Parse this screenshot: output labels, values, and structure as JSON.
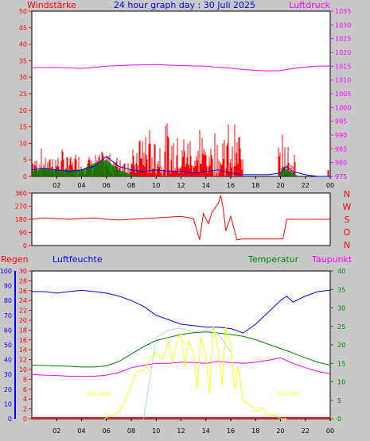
{
  "header": {
    "title": "24 hour graph day : 30 Juli 2025",
    "left_label": "Windstärke",
    "right_label": "Luftdruck"
  },
  "colors": {
    "wind": "#ff0000",
    "gust": "#0000ff",
    "wind_green": "#008000",
    "pressure": "#ff00ff",
    "direction": "#ff0000",
    "rain": "#ff0000",
    "humidity": "#0000ff",
    "temperature": "#008000",
    "dewpoint": "#ff00ff",
    "solar": "#ffff00",
    "uv": "#add8e6"
  },
  "chart_data": [
    {
      "id": "wind-pressure",
      "type": "line",
      "x_ticks": [
        "02",
        "04",
        "06",
        "08",
        "10",
        "12",
        "14",
        "16",
        "18",
        "20",
        "22",
        "00"
      ],
      "y_left_ticks": [
        "0",
        "5",
        "10",
        "15",
        "20",
        "25",
        "30",
        "35",
        "40",
        "45",
        "50"
      ],
      "y_right_ticks": [
        "975",
        "980",
        "985",
        "990",
        "995",
        "1000",
        "1005",
        "1010",
        "1015",
        "1020",
        "1025",
        "1030",
        "1035"
      ],
      "y_left_range": [
        0,
        50
      ],
      "y_right_range": [
        975,
        1035
      ],
      "series": [
        {
          "key": "pressure",
          "hours": [
            0,
            2,
            4,
            5,
            6,
            8,
            10,
            12,
            14,
            15,
            16,
            17,
            18,
            19,
            20,
            21,
            22,
            23,
            24
          ],
          "values": [
            1014.5,
            1014.6,
            1014.2,
            1014.6,
            1015.0,
            1015.4,
            1015.6,
            1015.2,
            1015.0,
            1014.6,
            1014.3,
            1013.8,
            1013.5,
            1013.3,
            1013.4,
            1014.2,
            1014.7,
            1015.0,
            1015.1
          ]
        },
        {
          "key": "wind_green",
          "hours": [
            0,
            1,
            2,
            3,
            4,
            5,
            6,
            7,
            8,
            9,
            19.9,
            20.2,
            20.5,
            21,
            21.5
          ],
          "values": [
            1.5,
            2.5,
            2,
            2,
            2,
            4,
            5,
            2,
            0.5,
            0,
            0,
            3,
            2,
            1,
            0
          ]
        },
        {
          "key": "gust",
          "hours": [
            0,
            1,
            2,
            3,
            4,
            5,
            6,
            7,
            8,
            9,
            10,
            11,
            12,
            13,
            14,
            15,
            16,
            17,
            18,
            19,
            20,
            20.5,
            21,
            22,
            23,
            24
          ],
          "values": [
            2,
            2.5,
            2,
            1.5,
            2,
            3,
            6,
            3,
            2,
            1.5,
            2,
            1.5,
            1.5,
            1,
            1.5,
            2,
            1,
            0.5,
            0.5,
            0.5,
            1,
            3,
            1.5,
            0.5,
            0,
            0
          ]
        }
      ]
    },
    {
      "id": "wind-direction",
      "type": "line",
      "y_ticks": [
        "0",
        "90",
        "180",
        "270",
        "360"
      ],
      "y_range": [
        0,
        360
      ],
      "compass": [
        "N",
        "W",
        "S",
        "O",
        "N"
      ],
      "series": [
        {
          "key": "direction",
          "hours": [
            0,
            1,
            2,
            3,
            4,
            5,
            6,
            7,
            8,
            9,
            10,
            11,
            12,
            13,
            13.5,
            13.8,
            14.2,
            14.5,
            15,
            15.2,
            15.4,
            15.6,
            16,
            16.5,
            17,
            18,
            19,
            20.2,
            20.5,
            21,
            22,
            23,
            24
          ],
          "values": [
            180,
            190,
            185,
            180,
            185,
            190,
            180,
            175,
            180,
            185,
            190,
            195,
            200,
            185,
            40,
            220,
            150,
            230,
            290,
            345,
            250,
            100,
            200,
            40,
            45,
            45,
            45,
            45,
            180,
            180,
            180,
            180,
            180
          ]
        }
      ]
    },
    {
      "id": "weather",
      "type": "line",
      "x_ticks": [
        "02",
        "04",
        "06",
        "08",
        "10",
        "12",
        "14",
        "16",
        "18",
        "20",
        "22",
        "00"
      ],
      "labels": {
        "rain": "Regen",
        "humidity": "Luftfeuchte",
        "temperature": "Temperatur",
        "dewpoint": "Taupunkt"
      },
      "y_humidity_ticks": [
        "0",
        "10",
        "20",
        "30",
        "40",
        "50",
        "60",
        "70",
        "80",
        "90",
        "100"
      ],
      "y_rain_ticks": [
        "0",
        "2",
        "4",
        "6",
        "8",
        "10",
        "12",
        "14",
        "16",
        "18",
        "20",
        "22",
        "24",
        "26",
        "28",
        "30"
      ],
      "y_temp_ticks": [
        "0",
        "5",
        "10",
        "15",
        "20",
        "25",
        "30",
        "35",
        "40"
      ],
      "humidity_range": [
        0,
        100
      ],
      "rain_range": [
        0,
        30
      ],
      "temp_range": [
        0,
        40
      ],
      "annotations": [
        {
          "key": "sunrise",
          "text": "Sun Rise",
          "hour": 5.4
        },
        {
          "key": "sunset",
          "text": "Sun Set",
          "hour": 20.6
        }
      ],
      "series": [
        {
          "key": "humidity",
          "hours": [
            0,
            1,
            2,
            3,
            4,
            5,
            6,
            7,
            8,
            9,
            10,
            11,
            12,
            13,
            14,
            15,
            16,
            17,
            18,
            19,
            20,
            20.5,
            21,
            22,
            23,
            24
          ],
          "values": [
            86,
            86,
            85,
            86,
            87,
            86,
            85,
            83,
            80,
            76,
            70,
            67,
            64,
            63,
            62,
            62,
            61,
            58,
            64,
            72,
            80,
            83,
            79,
            83,
            86,
            87
          ]
        },
        {
          "key": "temperature",
          "hours": [
            0,
            1,
            2,
            3,
            4,
            5,
            6,
            7,
            8,
            9,
            10,
            11,
            12,
            13,
            14,
            15,
            16,
            17,
            18,
            19,
            20,
            21,
            22,
            23,
            24
          ],
          "values": [
            14.5,
            14.4,
            14.3,
            14.2,
            14.0,
            14.0,
            14.3,
            15.5,
            17.5,
            19.5,
            21.2,
            22.0,
            22.8,
            23.3,
            23.5,
            23.2,
            22.8,
            22.3,
            21.4,
            20.2,
            19.0,
            17.8,
            16.5,
            15.3,
            14.5
          ]
        },
        {
          "key": "dewpoint",
          "hours": [
            0,
            1,
            2,
            3,
            4,
            5,
            6,
            7,
            8,
            9,
            10,
            11,
            12,
            13,
            14,
            15,
            16,
            17,
            18,
            19,
            20,
            21,
            22,
            23,
            24
          ],
          "values": [
            12.0,
            11.8,
            11.7,
            11.5,
            11.5,
            11.5,
            11.8,
            12.5,
            13.8,
            14.5,
            15.0,
            15.0,
            15.3,
            15.2,
            15.0,
            15.5,
            15.2,
            15.0,
            15.3,
            15.8,
            16.5,
            15.0,
            13.8,
            12.8,
            12.2
          ]
        },
        {
          "key": "uv",
          "hours": [
            9,
            10,
            11,
            12,
            13,
            14,
            15,
            16
          ],
          "values": [
            0,
            22,
            24,
            24.5,
            23.5,
            24,
            23,
            18
          ]
        },
        {
          "key": "solar",
          "hours": [
            5.8,
            6.5,
            7,
            7.5,
            8,
            8.5,
            9,
            9.5,
            10,
            10.5,
            11,
            11.3,
            11.6,
            12,
            12.3,
            12.6,
            13,
            13.3,
            13.6,
            14,
            14.3,
            14.6,
            15,
            15.3,
            15.6,
            16,
            16.3,
            16.6,
            17,
            17.5,
            18,
            18.5,
            19,
            19.5,
            20,
            20.5
          ],
          "values": [
            0,
            1,
            2,
            5,
            9,
            13,
            13,
            16,
            18,
            16,
            21,
            15,
            20,
            23,
            14,
            21,
            18,
            8,
            22,
            17,
            7,
            25,
            19,
            9,
            25,
            20,
            8,
            14,
            5,
            4,
            2,
            3,
            1,
            1,
            0,
            0
          ]
        }
      ]
    }
  ]
}
